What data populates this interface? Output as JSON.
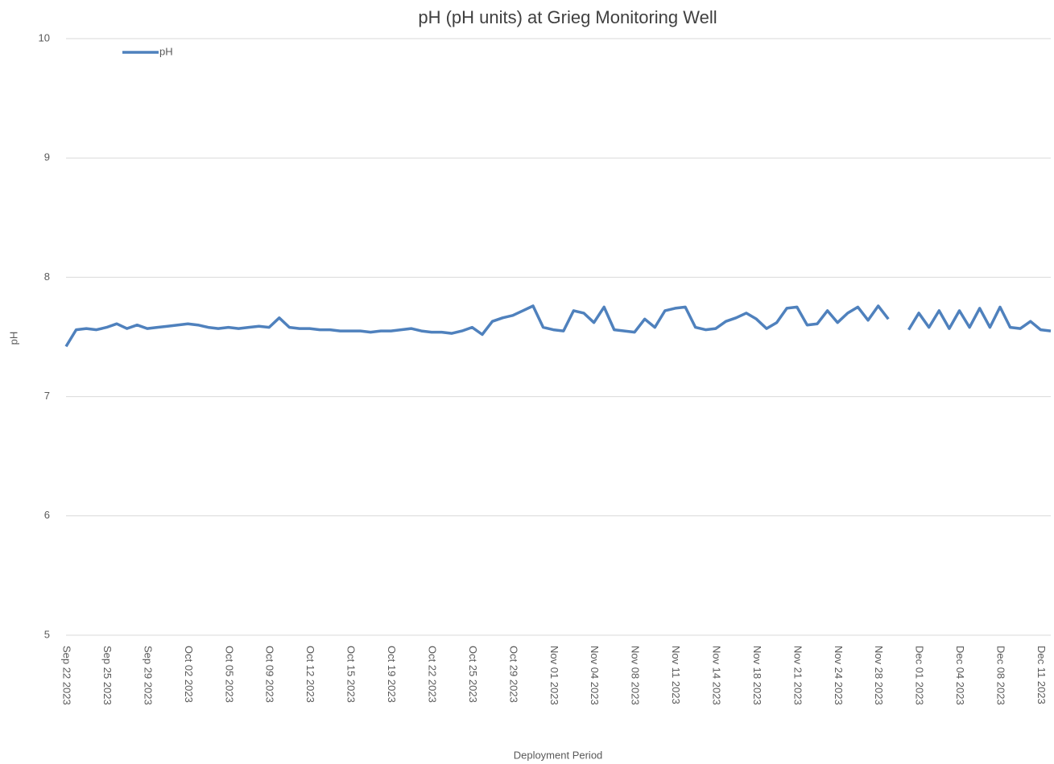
{
  "chart_data": {
    "type": "line",
    "title": "pH (pH units) at Grieg Monitoring Well",
    "x_label": "Deployment Period",
    "y_label": "pH",
    "ylim": [
      5,
      10
    ],
    "yticks": [
      5,
      6,
      7,
      8,
      9,
      10
    ],
    "grid": true,
    "legend": "top-left",
    "categories": [
      "Sep 22 2023",
      null,
      null,
      null,
      "Sep 25 2023",
      null,
      null,
      null,
      "Sep 29 2023",
      null,
      null,
      null,
      "Oct 02 2023",
      null,
      null,
      null,
      "Oct 05 2023",
      null,
      null,
      null,
      "Oct 09 2023",
      null,
      null,
      null,
      "Oct 12 2023",
      null,
      null,
      null,
      "Oct 15 2023",
      null,
      null,
      null,
      "Oct 19 2023",
      null,
      null,
      null,
      "Oct 22 2023",
      null,
      null,
      null,
      "Oct 25 2023",
      null,
      null,
      null,
      "Oct 29 2023",
      null,
      null,
      null,
      "Nov 01 2023",
      null,
      null,
      null,
      "Nov 04 2023",
      null,
      null,
      null,
      "Nov 08 2023",
      null,
      null,
      null,
      "Nov 11 2023",
      null,
      null,
      null,
      "Nov 14 2023",
      null,
      null,
      null,
      "Nov 18 2023",
      null,
      null,
      null,
      "Nov 21 2023",
      null,
      null,
      null,
      "Nov 24 2023",
      null,
      null,
      null,
      "Nov 28 2023",
      null,
      null,
      null,
      "Dec 01 2023",
      null,
      null,
      null,
      "Dec 04 2023",
      null,
      null,
      null,
      "Dec 08 2023",
      null,
      null,
      null,
      "Dec 11 2023",
      null
    ],
    "series": [
      {
        "name": "pH",
        "color": "#4f81bd",
        "values": [
          7.42,
          7.56,
          7.57,
          7.56,
          7.58,
          7.61,
          7.57,
          7.6,
          7.57,
          7.58,
          7.59,
          7.6,
          7.61,
          7.6,
          7.58,
          7.57,
          7.58,
          7.57,
          7.58,
          7.59,
          7.58,
          7.66,
          7.58,
          7.57,
          7.57,
          7.56,
          7.56,
          7.55,
          7.55,
          7.55,
          7.54,
          7.55,
          7.55,
          7.56,
          7.57,
          7.55,
          7.54,
          7.54,
          7.53,
          7.55,
          7.58,
          7.52,
          7.63,
          7.66,
          7.68,
          7.72,
          7.76,
          7.58,
          7.56,
          7.55,
          7.72,
          7.7,
          7.62,
          7.75,
          7.56,
          7.55,
          7.54,
          7.65,
          7.58,
          7.72,
          7.74,
          7.75,
          7.58,
          7.56,
          7.57,
          7.63,
          7.66,
          7.7,
          7.65,
          7.57,
          7.62,
          7.74,
          7.75,
          7.6,
          7.61,
          7.72,
          7.62,
          7.7,
          7.75,
          7.64,
          7.76,
          7.65,
          null,
          7.56,
          7.7,
          7.58,
          7.72,
          7.57,
          7.72,
          7.58,
          7.74,
          7.58,
          7.75,
          7.58,
          7.57,
          7.63,
          7.56,
          7.55
        ]
      }
    ]
  }
}
